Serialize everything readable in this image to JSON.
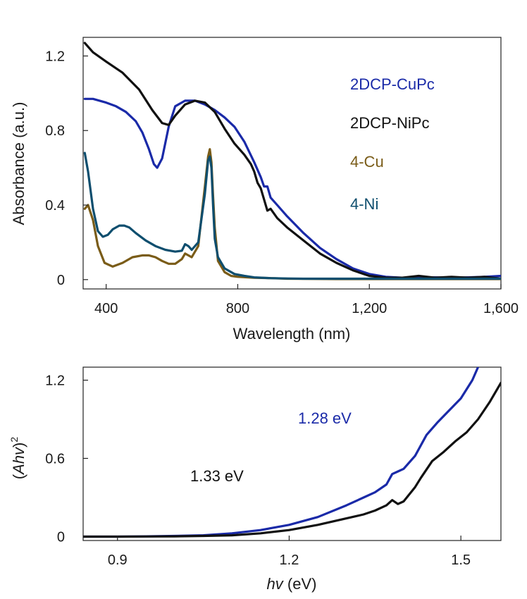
{
  "chart_data": [
    {
      "type": "line",
      "xlabel": "Wavelength (nm)",
      "ylabel": "Absorbance (a.u.)",
      "xlim": [
        330,
        1600
      ],
      "ylim": [
        -0.05,
        1.3
      ],
      "xticks": [
        {
          "v": 400,
          "label": "400"
        },
        {
          "v": 800,
          "label": "800"
        },
        {
          "v": 1200,
          "label": "1,200"
        },
        {
          "v": 1600,
          "label": "1,600"
        }
      ],
      "yticks": [
        {
          "v": 0,
          "label": "0"
        },
        {
          "v": 0.4,
          "label": "0.4"
        },
        {
          "v": 0.8,
          "label": "0.8"
        },
        {
          "v": 1.2,
          "label": "1.2"
        }
      ],
      "legend_position": "top-right",
      "series": [
        {
          "name": "2DCP-CuPc",
          "color": "#1a2aa8",
          "x": [
            335,
            360,
            400,
            430,
            460,
            490,
            510,
            530,
            545,
            555,
            570,
            590,
            610,
            640,
            670,
            700,
            730,
            760,
            790,
            820,
            850,
            870,
            880,
            890,
            900,
            920,
            950,
            1000,
            1050,
            1100,
            1150,
            1200,
            1250,
            1300,
            1350,
            1400,
            1450,
            1500,
            1550,
            1600
          ],
          "y": [
            0.97,
            0.97,
            0.95,
            0.93,
            0.9,
            0.85,
            0.79,
            0.7,
            0.62,
            0.6,
            0.65,
            0.82,
            0.93,
            0.96,
            0.96,
            0.94,
            0.91,
            0.87,
            0.82,
            0.74,
            0.63,
            0.55,
            0.5,
            0.5,
            0.44,
            0.4,
            0.34,
            0.25,
            0.17,
            0.11,
            0.06,
            0.03,
            0.015,
            0.01,
            0.01,
            0.012,
            0.01,
            0.012,
            0.015,
            0.02
          ]
        },
        {
          "name": "2DCP-NiPc",
          "color": "#111111",
          "x": [
            335,
            360,
            400,
            450,
            500,
            540,
            570,
            590,
            610,
            640,
            670,
            700,
            730,
            760,
            790,
            820,
            840,
            850,
            860,
            870,
            880,
            890,
            900,
            920,
            950,
            1000,
            1050,
            1100,
            1150,
            1200,
            1250,
            1300,
            1350,
            1400,
            1450,
            1500,
            1550,
            1600
          ],
          "y": [
            1.27,
            1.22,
            1.17,
            1.11,
            1.02,
            0.91,
            0.84,
            0.83,
            0.88,
            0.94,
            0.96,
            0.95,
            0.9,
            0.81,
            0.73,
            0.67,
            0.62,
            0.58,
            0.52,
            0.49,
            0.43,
            0.37,
            0.38,
            0.33,
            0.28,
            0.21,
            0.14,
            0.09,
            0.05,
            0.02,
            0.01,
            0.01,
            0.02,
            0.01,
            0.015,
            0.01,
            0.015,
            0.005
          ]
        },
        {
          "name": "4-Cu",
          "color": "#7a5c18",
          "x": [
            335,
            345,
            360,
            375,
            395,
            420,
            450,
            480,
            510,
            530,
            550,
            570,
            590,
            610,
            630,
            640,
            650,
            660,
            680,
            700,
            710,
            715,
            720,
            725,
            730,
            740,
            760,
            780,
            800,
            850,
            900,
            950,
            1000,
            1100,
            1200,
            1300,
            1400,
            1500,
            1600
          ],
          "y": [
            0.38,
            0.4,
            0.32,
            0.18,
            0.09,
            0.07,
            0.09,
            0.12,
            0.13,
            0.13,
            0.12,
            0.1,
            0.085,
            0.085,
            0.11,
            0.14,
            0.13,
            0.12,
            0.18,
            0.5,
            0.66,
            0.7,
            0.63,
            0.45,
            0.28,
            0.1,
            0.04,
            0.02,
            0.015,
            0.01,
            0.008,
            0.005,
            0.004,
            0.003,
            0.003,
            0.003,
            0.003,
            0.003,
            0.003
          ]
        },
        {
          "name": "4-Ni",
          "color": "#0e4e6e",
          "x": [
            335,
            345,
            360,
            375,
            390,
            405,
            420,
            440,
            455,
            470,
            490,
            520,
            550,
            580,
            610,
            630,
            640,
            650,
            660,
            680,
            700,
            710,
            715,
            720,
            725,
            730,
            740,
            760,
            790,
            820,
            850,
            900,
            950,
            1000,
            1100,
            1200,
            1300,
            1400,
            1500,
            1600
          ],
          "y": [
            0.68,
            0.58,
            0.38,
            0.26,
            0.23,
            0.24,
            0.27,
            0.29,
            0.29,
            0.28,
            0.25,
            0.21,
            0.18,
            0.16,
            0.15,
            0.155,
            0.19,
            0.18,
            0.16,
            0.2,
            0.46,
            0.64,
            0.66,
            0.6,
            0.4,
            0.22,
            0.12,
            0.06,
            0.03,
            0.02,
            0.012,
            0.008,
            0.006,
            0.005,
            0.005,
            0.005,
            0.005,
            0.005,
            0.005,
            0.005
          ]
        }
      ]
    },
    {
      "type": "line",
      "xlabel_italic": "hv",
      "xlabel_rest": " (eV)",
      "ylabel_open": "(",
      "ylabel_italic": "Ahv",
      "ylabel_close": ")",
      "ylabel_sup": "2",
      "xlim": [
        0.84,
        1.57
      ],
      "ylim": [
        -0.03,
        1.3
      ],
      "xticks": [
        {
          "v": 0.9,
          "label": "0.9"
        },
        {
          "v": 1.2,
          "label": "1.2"
        },
        {
          "v": 1.5,
          "label": "1.5"
        }
      ],
      "yticks": [
        {
          "v": 0,
          "label": "0"
        },
        {
          "v": 0.6,
          "label": "0.6"
        },
        {
          "v": 1.2,
          "label": "1.2"
        }
      ],
      "annotations": [
        {
          "text": "1.28 eV",
          "color": "#1a2aa8"
        },
        {
          "text": "1.33 eV",
          "color": "#111111"
        }
      ],
      "series": [
        {
          "name": "2DCP-CuPc",
          "color": "#1a2aa8",
          "x": [
            0.84,
            0.9,
            0.95,
            1.0,
            1.05,
            1.1,
            1.15,
            1.2,
            1.25,
            1.3,
            1.33,
            1.35,
            1.37,
            1.38,
            1.39,
            1.4,
            1.42,
            1.44,
            1.46,
            1.48,
            1.5,
            1.52,
            1.53
          ],
          "y": [
            0.0,
            0.0,
            0.002,
            0.005,
            0.01,
            0.025,
            0.05,
            0.09,
            0.15,
            0.24,
            0.3,
            0.34,
            0.4,
            0.48,
            0.5,
            0.52,
            0.62,
            0.78,
            0.88,
            0.97,
            1.06,
            1.2,
            1.3
          ]
        },
        {
          "name": "2DCP-NiPc",
          "color": "#111111",
          "x": [
            0.84,
            0.9,
            0.95,
            1.0,
            1.05,
            1.1,
            1.15,
            1.2,
            1.25,
            1.3,
            1.33,
            1.35,
            1.37,
            1.38,
            1.39,
            1.4,
            1.42,
            1.43,
            1.45,
            1.47,
            1.49,
            1.51,
            1.53,
            1.55,
            1.57
          ],
          "y": [
            0.0,
            0.0,
            0.001,
            0.002,
            0.005,
            0.01,
            0.025,
            0.05,
            0.09,
            0.14,
            0.17,
            0.2,
            0.24,
            0.28,
            0.25,
            0.27,
            0.38,
            0.45,
            0.58,
            0.65,
            0.73,
            0.8,
            0.9,
            1.03,
            1.18
          ]
        }
      ]
    }
  ]
}
